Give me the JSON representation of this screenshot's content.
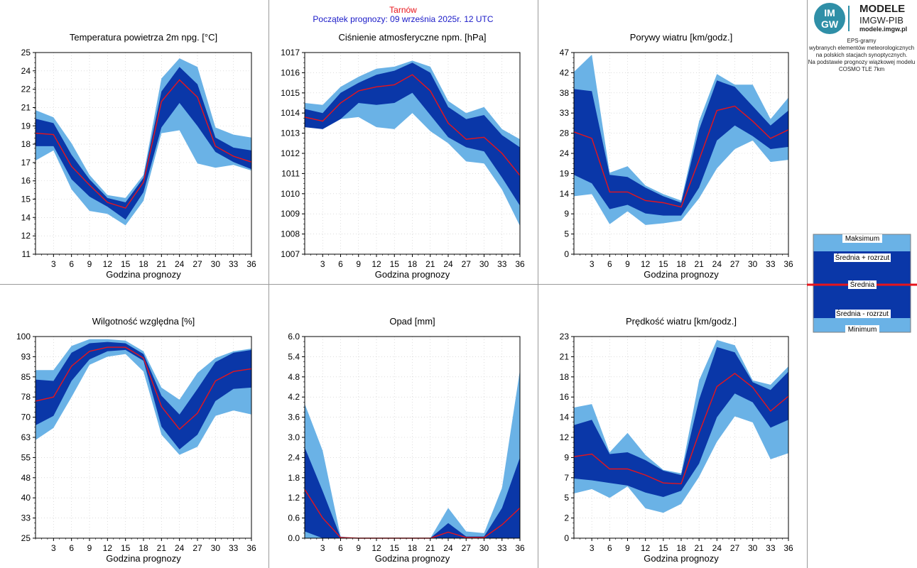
{
  "header": {
    "title": "Tarnów",
    "subtitle": "Początek prognozy: 09 września 2025r. 12 UTC"
  },
  "logo": {
    "circle_top": "IM",
    "circle_bottom": "GW",
    "line1": "MODELE",
    "line2": "IMGW-PIB",
    "line3": "modele.imgw.pl"
  },
  "info": {
    "lines": [
      "EPS-gramy",
      "wybranych elementów meteorologicznych",
      "na polskich stacjach  synoptycznych.",
      "",
      "Na podstawie prognozy wiązkowej modelu",
      "COSMO TLE 7km"
    ]
  },
  "legend": {
    "max": "Maksimum",
    "plus": "Średnia + rozrzut",
    "mean": "Średnia",
    "minus": "Średnia - rozrzut",
    "min": "Minimum"
  },
  "colors": {
    "outer_band": "#6ab2e6",
    "inner_band": "#0a37a8",
    "mean_line": "#e8141b",
    "title": "#e8141b",
    "subtitle": "#1a1ac8"
  },
  "chart_data": [
    {
      "type": "area",
      "title": "Temperatura powietrza 2m npg. [°C]",
      "xlabel": "Godzina prognozy",
      "ylabel": "",
      "x": [
        0,
        3,
        6,
        9,
        12,
        15,
        18,
        21,
        24,
        27,
        30,
        33,
        36
      ],
      "xticks": [
        3,
        6,
        9,
        12,
        15,
        18,
        21,
        24,
        27,
        30,
        33,
        36
      ],
      "ylim": [
        11,
        25
      ],
      "yticks": [
        "11",
        "12",
        "14",
        "15",
        "16",
        "17",
        "18",
        "19",
        "21",
        "22",
        "24",
        "25"
      ],
      "yticks_values": [
        11,
        12.27,
        13.55,
        14.82,
        16.09,
        17.36,
        18.64,
        19.91,
        21.18,
        22.45,
        23.73,
        25
      ],
      "max": [
        21.0,
        20.5,
        18.7,
        16.5,
        15.1,
        14.9,
        16.5,
        23.2,
        24.6,
        24.0,
        19.8,
        19.3,
        19.1
      ],
      "plus": [
        20.4,
        20.1,
        17.9,
        16.2,
        14.9,
        14.6,
        16.3,
        22.3,
        24.0,
        22.8,
        19.1,
        18.4,
        18.2
      ],
      "mean": [
        19.4,
        19.3,
        17.1,
        15.8,
        14.6,
        14.2,
        16.0,
        21.6,
        23.1,
        21.9,
        18.5,
        17.8,
        17.4
      ],
      "minus": [
        18.5,
        18.5,
        16.2,
        15.0,
        14.3,
        13.4,
        15.3,
        19.8,
        21.5,
        19.9,
        18.1,
        17.4,
        16.9
      ],
      "min": [
        17.5,
        18.2,
        15.5,
        14.0,
        13.8,
        13.0,
        14.7,
        19.4,
        19.6,
        17.3,
        17.0,
        17.2,
        16.8
      ]
    },
    {
      "type": "area",
      "title": "Ciśnienie atmosferyczne npm. [hPa]",
      "xlabel": "Godzina prognozy",
      "ylabel": "",
      "x": [
        0,
        3,
        6,
        9,
        12,
        15,
        18,
        21,
        24,
        27,
        30,
        33,
        36
      ],
      "xticks": [
        3,
        6,
        9,
        12,
        15,
        18,
        21,
        24,
        27,
        30,
        33,
        36
      ],
      "ylim": [
        1007,
        1017
      ],
      "yticks": [
        "1007",
        "1008",
        "1009",
        "1010",
        "1011",
        "1012",
        "1013",
        "1014",
        "1015",
        "1016",
        "1017"
      ],
      "yticks_values": [
        1007,
        1008,
        1009,
        1010,
        1011,
        1012,
        1013,
        1014,
        1015,
        1016,
        1017
      ],
      "max": [
        1014.5,
        1014.4,
        1015.3,
        1015.8,
        1016.2,
        1016.3,
        1016.6,
        1016.3,
        1014.6,
        1014.0,
        1014.3,
        1013.2,
        1012.7
      ],
      "plus": [
        1014.2,
        1014.0,
        1015.0,
        1015.5,
        1015.9,
        1016.1,
        1016.5,
        1016.0,
        1014.3,
        1013.7,
        1013.9,
        1012.9,
        1012.3
      ],
      "mean": [
        1013.8,
        1013.6,
        1014.5,
        1015.1,
        1015.3,
        1015.4,
        1015.9,
        1015.1,
        1013.5,
        1012.7,
        1012.8,
        1012.0,
        1010.9
      ],
      "minus": [
        1013.3,
        1013.2,
        1013.7,
        1014.5,
        1014.4,
        1014.5,
        1015.0,
        1013.9,
        1012.8,
        1012.3,
        1012.1,
        1010.8,
        1009.4
      ],
      "min": [
        1013.5,
        1013.2,
        1013.7,
        1013.8,
        1013.3,
        1013.2,
        1014.0,
        1013.1,
        1012.5,
        1011.6,
        1011.5,
        1010.2,
        1008.4
      ]
    },
    {
      "type": "area",
      "title": "Porywy wiatru [km/godz.]",
      "xlabel": "Godzina prognozy",
      "ylabel": "",
      "x": [
        0,
        3,
        6,
        9,
        12,
        15,
        18,
        21,
        24,
        27,
        30,
        33,
        36
      ],
      "xticks": [
        3,
        6,
        9,
        12,
        15,
        18,
        21,
        24,
        27,
        30,
        33,
        36
      ],
      "ylim": [
        0,
        47
      ],
      "yticks": [
        "0",
        "5",
        "9",
        "14",
        "19",
        "24",
        "28",
        "33",
        "38",
        "42",
        "47"
      ],
      "yticks_values": [
        0,
        4.7,
        9.4,
        14.1,
        18.8,
        23.5,
        28.2,
        32.9,
        37.6,
        42.3,
        47
      ],
      "max": [
        42.5,
        46.5,
        19.0,
        20.5,
        16.0,
        14.0,
        12.5,
        31.0,
        42.0,
        39.5,
        39.5,
        31.5,
        36.5
      ],
      "plus": [
        38.5,
        38.0,
        18.5,
        18.0,
        15.5,
        13.5,
        12.0,
        29.0,
        40.5,
        39.0,
        34.5,
        30.0,
        33.5
      ],
      "mean": [
        28.5,
        27.0,
        14.5,
        14.5,
        12.5,
        12.0,
        11.0,
        22.0,
        33.5,
        34.5,
        31.0,
        27.0,
        29.0
      ],
      "minus": [
        18.5,
        16.5,
        10.5,
        11.5,
        9.5,
        9.0,
        9.0,
        15.5,
        26.5,
        30.0,
        27.5,
        24.5,
        25.0
      ],
      "min": [
        13.5,
        14.0,
        7.0,
        10.0,
        6.8,
        7.2,
        7.8,
        13.0,
        20.0,
        24.5,
        26.5,
        21.5,
        22.0
      ]
    },
    {
      "type": "area",
      "title": "Wilgotność względna [%]",
      "xlabel": "Godzina prognozy",
      "ylabel": "",
      "x": [
        0,
        3,
        6,
        9,
        12,
        15,
        18,
        21,
        24,
        27,
        30,
        33,
        36
      ],
      "xticks": [
        3,
        6,
        9,
        12,
        15,
        18,
        21,
        24,
        27,
        30,
        33,
        36
      ],
      "ylim": [
        25,
        100
      ],
      "yticks": [
        "25",
        "33",
        "40",
        "48",
        "55",
        "63",
        "70",
        "78",
        "85",
        "93",
        "100"
      ],
      "yticks_values": [
        25,
        32.5,
        40,
        47.5,
        55,
        62.5,
        70,
        77.5,
        85,
        92.5,
        100
      ],
      "max": [
        87.5,
        87.5,
        96.5,
        99.0,
        99.0,
        98.5,
        94.5,
        81.0,
        76.5,
        86.5,
        92.0,
        94.5,
        95.5
      ],
      "plus": [
        84.0,
        83.5,
        94.0,
        97.5,
        98.0,
        97.5,
        93.5,
        78.0,
        71.0,
        80.5,
        90.5,
        94.0,
        95.0
      ],
      "mean": [
        76.0,
        77.5,
        89.0,
        94.5,
        96.0,
        96.0,
        92.0,
        74.0,
        65.5,
        71.5,
        83.5,
        87.0,
        88.0
      ],
      "minus": [
        67.0,
        70.5,
        83.5,
        91.5,
        94.5,
        95.0,
        91.0,
        66.5,
        58.0,
        63.5,
        76.0,
        80.5,
        81.0
      ],
      "min": [
        61.5,
        66.0,
        77.5,
        89.5,
        92.5,
        93.5,
        87.0,
        63.5,
        56.0,
        59.0,
        70.5,
        72.5,
        71.0
      ]
    },
    {
      "type": "area",
      "title": "Opad [mm]",
      "xlabel": "Godzina prognozy",
      "ylabel": "",
      "x": [
        0,
        3,
        6,
        9,
        12,
        15,
        18,
        21,
        24,
        27,
        30,
        33,
        36
      ],
      "xticks": [
        3,
        6,
        9,
        12,
        15,
        18,
        21,
        24,
        27,
        30,
        33,
        36
      ],
      "ylim": [
        0,
        6
      ],
      "yticks": [
        "0.0",
        "0.6",
        "1.2",
        "1.8",
        "2.4",
        "3.0",
        "3.6",
        "4.2",
        "4.8",
        "5.4",
        "6.0"
      ],
      "yticks_values": [
        0,
        0.6,
        1.2,
        1.8,
        2.4,
        3.0,
        3.6,
        4.2,
        4.8,
        5.4,
        6.0
      ],
      "max": [
        4.0,
        2.6,
        0.05,
        0,
        0,
        0,
        0,
        0,
        0.9,
        0.2,
        0.15,
        1.5,
        5.0
      ],
      "plus": [
        2.7,
        1.4,
        0.03,
        0,
        0,
        0,
        0,
        0,
        0.45,
        0.05,
        0.05,
        0.9,
        2.4
      ],
      "mean": [
        1.45,
        0.6,
        0.02,
        0,
        0,
        0,
        0,
        0,
        0.18,
        0.02,
        0.02,
        0.4,
        0.9
      ],
      "minus": [
        0.2,
        0,
        0,
        0,
        0,
        0,
        0,
        0,
        0,
        0,
        0,
        0,
        0
      ],
      "min": [
        0,
        0,
        0,
        0,
        0,
        0,
        0,
        0,
        0,
        0,
        0,
        0,
        0
      ]
    },
    {
      "type": "area",
      "title": "Prędkość wiatru [km/godz.]",
      "xlabel": "Godzina prognozy",
      "ylabel": "",
      "x": [
        0,
        3,
        6,
        9,
        12,
        15,
        18,
        21,
        24,
        27,
        30,
        33,
        36
      ],
      "xticks": [
        3,
        6,
        9,
        12,
        15,
        18,
        21,
        24,
        27,
        30,
        33,
        36
      ],
      "ylim": [
        0,
        23
      ],
      "yticks": [
        "0",
        "2",
        "5",
        "7",
        "9",
        "12",
        "14",
        "16",
        "18",
        "21",
        "23"
      ],
      "yticks_values": [
        0,
        2.3,
        4.6,
        6.9,
        9.2,
        11.5,
        13.8,
        16.1,
        18.4,
        20.7,
        23
      ],
      "max": [
        14.9,
        15.3,
        9.8,
        12.0,
        9.5,
        7.8,
        7.4,
        18.0,
        22.6,
        22.0,
        18.0,
        17.5,
        19.6
      ],
      "plus": [
        12.9,
        13.5,
        9.6,
        9.8,
        8.9,
        7.7,
        7.2,
        15.8,
        21.8,
        21.2,
        17.8,
        16.9,
        19.0
      ],
      "mean": [
        9.3,
        9.6,
        7.9,
        7.9,
        7.2,
        6.3,
        6.2,
        12.0,
        17.3,
        18.8,
        17.2,
        14.5,
        16.2
      ],
      "minus": [
        6.8,
        6.6,
        6.3,
        6.0,
        5.2,
        4.7,
        5.4,
        8.5,
        13.8,
        16.5,
        15.5,
        12.6,
        13.5
      ],
      "min": [
        5.1,
        5.6,
        4.6,
        5.9,
        3.4,
        2.9,
        3.9,
        7.0,
        11.0,
        13.9,
        13.2,
        9.0,
        9.7
      ]
    }
  ]
}
